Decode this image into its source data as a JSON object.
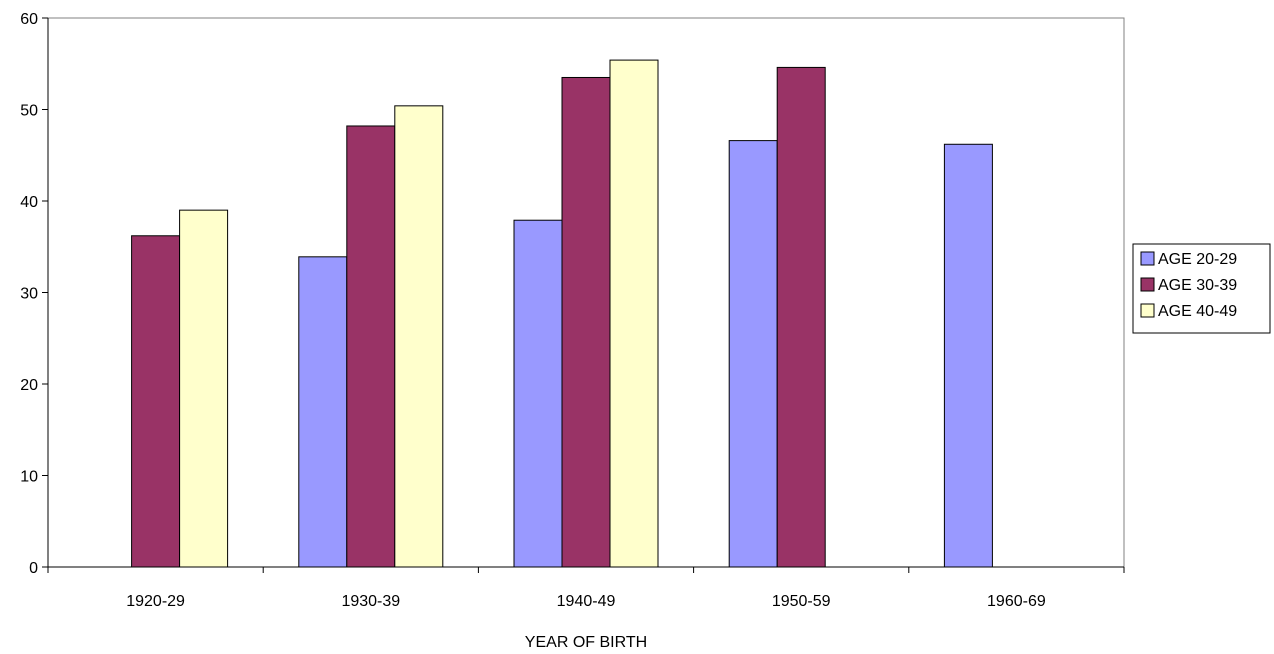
{
  "chart_data": {
    "type": "bar",
    "title": "",
    "xlabel": "YEAR OF BIRTH",
    "ylabel": "",
    "categories": [
      "1920-29",
      "1930-39",
      "1940-49",
      "1950-59",
      "1960-69"
    ],
    "ylim": [
      0,
      60
    ],
    "yticks": [
      0,
      10,
      20,
      30,
      40,
      50,
      60
    ],
    "grid": false,
    "legend_position": "right",
    "series": [
      {
        "name": "AGE 20-29",
        "color": "#9999FF",
        "values": [
          null,
          33.9,
          37.9,
          46.6,
          46.2
        ]
      },
      {
        "name": "AGE 30-39",
        "color": "#993366",
        "values": [
          36.2,
          48.2,
          53.5,
          54.6,
          null
        ]
      },
      {
        "name": "AGE 40-49",
        "color": "#FFFFCC",
        "values": [
          39.0,
          50.4,
          55.4,
          null,
          null
        ]
      }
    ]
  }
}
